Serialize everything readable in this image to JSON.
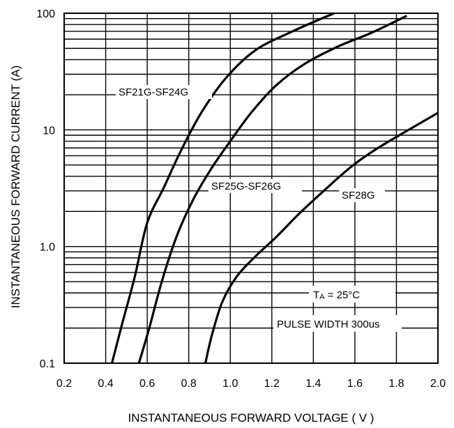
{
  "chart_data": {
    "type": "line",
    "xlabel": "INSTANTANEOUS FORWARD VOLTAGE ( V )",
    "ylabel": "INSTANTANEOUS FORWARD CURRENT  (A)",
    "xlim": [
      0.2,
      2.0
    ],
    "ylim": [
      0.1,
      100
    ],
    "yscale": "log",
    "grid": true,
    "x_ticks": [
      "0.2",
      "0.4",
      "0.6",
      "0.8",
      "1.0",
      "1.2",
      "1.4",
      "1.6",
      "1.8",
      "2.0"
    ],
    "y_ticks": [
      {
        "value": 0.1,
        "label": "0.1"
      },
      {
        "value": 1,
        "label": "1.0"
      },
      {
        "value": 10,
        "label": "10"
      },
      {
        "value": 100,
        "label": "100"
      }
    ],
    "series": [
      {
        "name": "SF21G-SF24G",
        "x": [
          0.43,
          0.48,
          0.54,
          0.6,
          0.68,
          0.76,
          0.86,
          0.98,
          1.12,
          1.3,
          1.5
        ],
        "y": [
          0.1,
          0.22,
          0.55,
          1.6,
          3.2,
          6.5,
          14,
          28,
          48,
          70,
          100
        ]
      },
      {
        "name": "SF25G-SF26G",
        "x": [
          0.56,
          0.61,
          0.67,
          0.74,
          0.82,
          0.91,
          1.0,
          1.1,
          1.22,
          1.36,
          1.52,
          1.68,
          1.85
        ],
        "y": [
          0.1,
          0.2,
          0.5,
          1.2,
          2.5,
          4.7,
          8.0,
          14,
          24,
          37,
          52,
          68,
          95
        ]
      },
      {
        "name": "SF28G",
        "x": [
          0.88,
          0.91,
          0.96,
          1.03,
          1.12,
          1.22,
          1.33,
          1.45,
          1.58,
          1.7,
          1.85,
          2.0
        ],
        "y": [
          0.1,
          0.17,
          0.33,
          0.55,
          0.82,
          1.2,
          1.9,
          3.0,
          4.8,
          6.8,
          9.8,
          14
        ]
      }
    ],
    "annotations": {
      "temp": "T",
      "temp_sub": "A",
      "temp_rest": " = 25°C",
      "pulse": "PULSE WIDTH 300us"
    }
  }
}
